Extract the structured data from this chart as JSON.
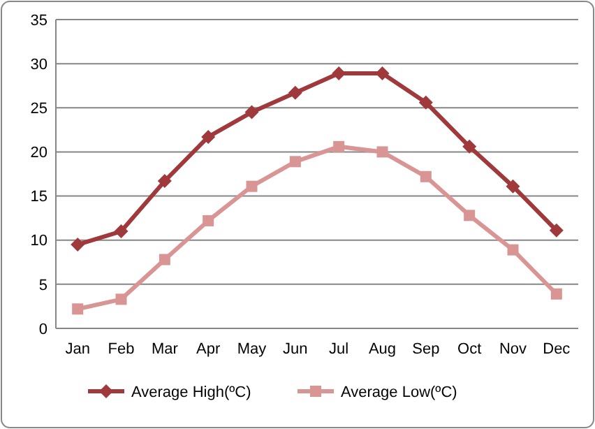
{
  "chart_data": {
    "type": "line",
    "categories": [
      "Jan",
      "Feb",
      "Mar",
      "Apr",
      "May",
      "Jun",
      "Jul",
      "Aug",
      "Sep",
      "Oct",
      "Nov",
      "Dec"
    ],
    "series": [
      {
        "name": "Average High(ºC)",
        "color": "#a0393b",
        "marker": "diamond",
        "values": [
          9.5,
          11,
          16.7,
          21.7,
          24.5,
          26.7,
          28.9,
          28.9,
          25.6,
          20.6,
          16.1,
          11.1
        ]
      },
      {
        "name": "Average Low(ºC)",
        "color": "#d99594",
        "marker": "square",
        "values": [
          2.2,
          3.3,
          7.8,
          12.2,
          16.1,
          18.9,
          20.6,
          20,
          17.2,
          12.8,
          8.9,
          3.9
        ]
      }
    ],
    "ylim": [
      0,
      35
    ],
    "yticks": [
      0,
      5,
      10,
      15,
      20,
      25,
      30,
      35
    ],
    "grid": "y",
    "legend": "bottom"
  }
}
